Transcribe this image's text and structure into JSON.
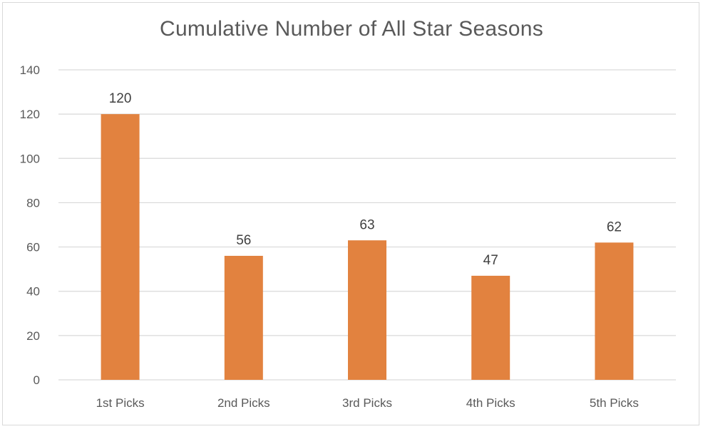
{
  "chart_data": {
    "type": "bar",
    "title": "Cumulative Number of All Star Seasons",
    "categories": [
      "1st Picks",
      "2nd Picks",
      "3rd Picks",
      "4th Picks",
      "5th Picks"
    ],
    "values": [
      120,
      56,
      63,
      47,
      62
    ],
    "xlabel": "",
    "ylabel": "",
    "ylim": [
      0,
      140
    ],
    "yticks": [
      0,
      20,
      40,
      60,
      80,
      100,
      120,
      140
    ],
    "grid": true,
    "legend": "none",
    "bar_color": "#e2823f",
    "data_labels": true
  }
}
